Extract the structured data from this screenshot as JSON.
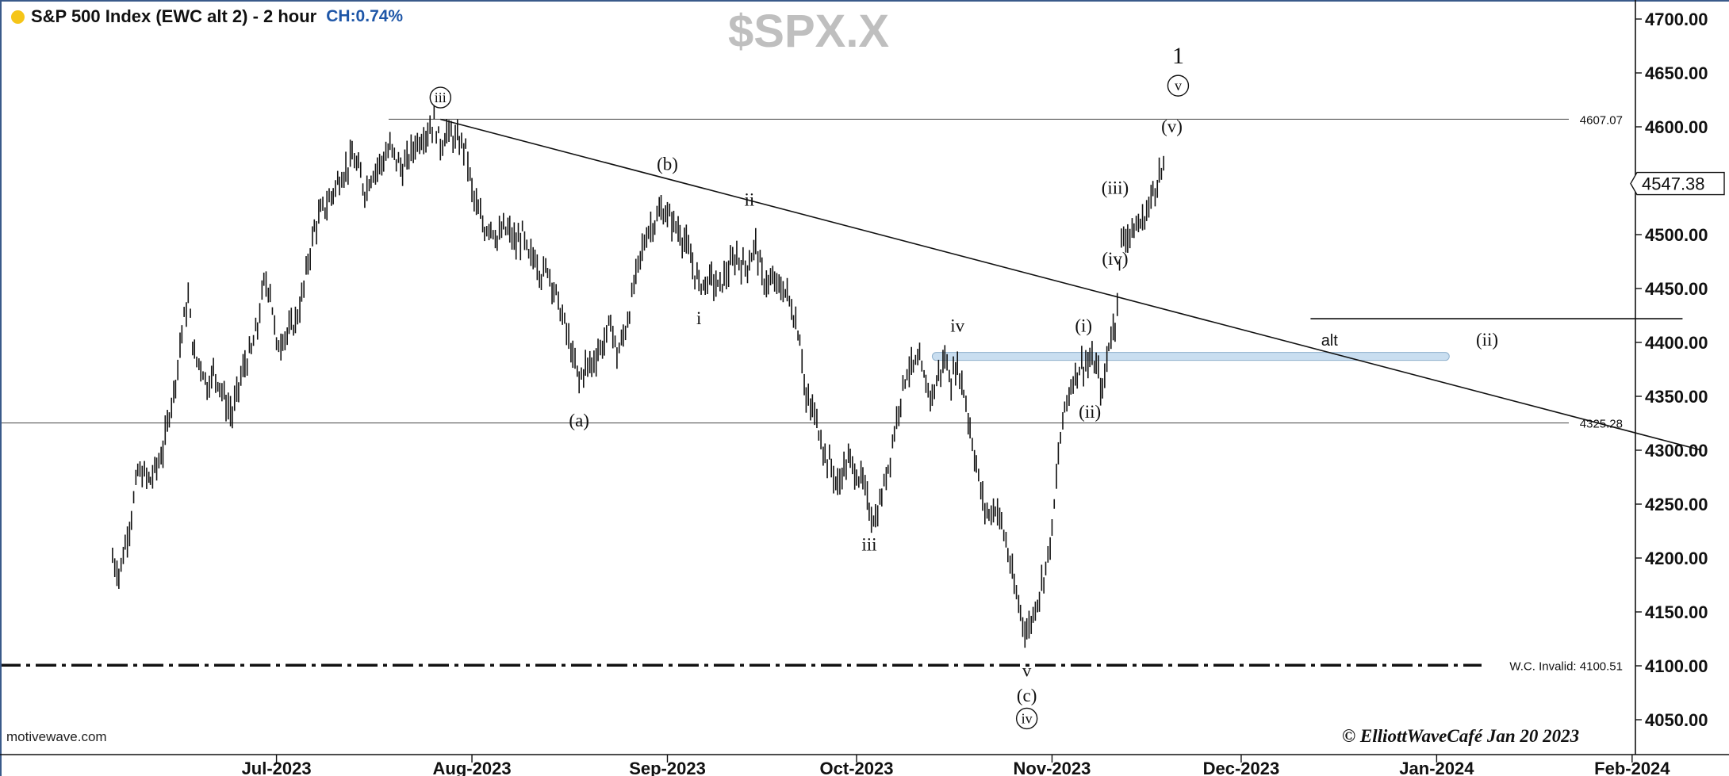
{
  "header": {
    "dot_color": "#f5c518",
    "title": "S&P 500 Index (EWC alt 2) - 2 hour",
    "change": "CH:0.74%",
    "change_color": "#1f57a8",
    "watermark": "$SPX.X"
  },
  "footer": {
    "source": "motivewave.com",
    "copyright": "© ElliottWaveCafé Jan 20 2023"
  },
  "chart_data": {
    "type": "line",
    "subtype": "ohlc-bar",
    "title": "S&P 500 Index (EWC alt 2) - 2 hour",
    "ylim": [
      4035,
      4720
    ],
    "y_ticks": [
      "4700.00",
      "4650.00",
      "4600.00",
      "4550.00",
      "4500.00",
      "4450.00",
      "4400.00",
      "4350.00",
      "4300.00",
      "4250.00",
      "4200.00",
      "4150.00",
      "4100.00",
      "4050.00"
    ],
    "x_ticks": [
      "Jul-2023",
      "Aug-2023",
      "Sep-2023",
      "Oct-2023",
      "Nov-2023",
      "Dec-2023",
      "Jan-2024",
      "Feb-2024"
    ],
    "last_price": "4547.38",
    "grid": false,
    "horizontal_lines": [
      {
        "label": "4607.07",
        "value": 4607.07,
        "style": "solid"
      },
      {
        "label": "4325.28",
        "value": 4325.28,
        "style": "solid"
      },
      {
        "label": "W.C. Invalid: 4100.51",
        "value": 4100.51,
        "style": "dash-dot"
      }
    ],
    "trendline": {
      "from": [
        "Jul-27-2023",
        4607
      ],
      "to": [
        "Feb-12-2024",
        4300
      ]
    },
    "zone": {
      "from": "Oct-13-2023",
      "to": "Jan-03-2024",
      "value": 4387,
      "color": "#c9def0"
    },
    "alt_segment": {
      "from": "Dec-12-2023",
      "to": "Feb-09-2024",
      "value": 4422
    },
    "wave_labels": [
      {
        "text": "iii",
        "date": "Jul-27-2023",
        "price": 4622,
        "circled": true
      },
      {
        "text": "(b)",
        "date": "Sep-01-2023",
        "price": 4560,
        "circled": false
      },
      {
        "text": "ii",
        "date": "Sep-14-2023",
        "price": 4527,
        "circled": false
      },
      {
        "text": "i",
        "date": "Sep-06-2023",
        "price": 4417,
        "circled": false
      },
      {
        "text": "(a)",
        "date": "Aug-18-2023",
        "price": 4322,
        "circled": false
      },
      {
        "text": "iv",
        "date": "Oct-17-2023",
        "price": 4410,
        "circled": false
      },
      {
        "text": "iii",
        "date": "Oct-03-2023",
        "price": 4207,
        "circled": false
      },
      {
        "text": "v",
        "date": "Oct-28-2023",
        "price": 4090,
        "circled": false
      },
      {
        "text": "(c)",
        "date": "Oct-28-2023",
        "price": 4067,
        "circled": false
      },
      {
        "text": "iv",
        "date": "Oct-28-2023",
        "price": 4046,
        "circled": true
      },
      {
        "text": "(i)",
        "date": "Nov-06-2023",
        "price": 4410,
        "circled": false
      },
      {
        "text": "(ii)",
        "date": "Nov-07-2023",
        "price": 4330,
        "circled": false
      },
      {
        "text": "(iii)",
        "date": "Nov-11-2023",
        "price": 4538,
        "circled": false
      },
      {
        "text": "(iv)",
        "date": "Nov-11-2023",
        "price": 4472,
        "circled": false
      },
      {
        "text": "(v)",
        "date": "Nov-20-2023",
        "price": 4595,
        "circled": false
      },
      {
        "text": "v",
        "date": "Nov-21-2023",
        "price": 4633,
        "circled": true
      },
      {
        "text": "1",
        "date": "Nov-21-2023",
        "price": 4659,
        "circled": false
      },
      {
        "text": "alt",
        "date": "Dec-15-2023",
        "price": 4397,
        "circled": false
      },
      {
        "text": "(ii)",
        "date": "Jan-09-2024",
        "price": 4397,
        "circled": false
      }
    ],
    "series": [
      {
        "name": "$SPX.X",
        "points": [
          [
            "2023-06-05",
            4200
          ],
          [
            "2023-06-06",
            4185
          ],
          [
            "2023-06-07",
            4212
          ],
          [
            "2023-06-08",
            4240
          ],
          [
            "2023-06-09",
            4280
          ],
          [
            "2023-06-11",
            4272
          ],
          [
            "2023-06-12",
            4285
          ],
          [
            "2023-06-13",
            4300
          ],
          [
            "2023-06-14",
            4335
          ],
          [
            "2023-06-15",
            4365
          ],
          [
            "2023-06-16",
            4412
          ],
          [
            "2023-06-17",
            4440
          ],
          [
            "2023-06-18",
            4385
          ],
          [
            "2023-06-19",
            4380
          ],
          [
            "2023-06-20",
            4360
          ],
          [
            "2023-06-21",
            4372
          ],
          [
            "2023-06-22",
            4362
          ],
          [
            "2023-06-23",
            4343
          ],
          [
            "2023-06-24",
            4333
          ],
          [
            "2023-06-25",
            4360
          ],
          [
            "2023-06-26",
            4380
          ],
          [
            "2023-06-27",
            4392
          ],
          [
            "2023-06-28",
            4415
          ],
          [
            "2023-06-29",
            4455
          ],
          [
            "2023-06-30",
            4450
          ],
          [
            "2023-07-01",
            4395
          ],
          [
            "2023-07-02",
            4405
          ],
          [
            "2023-07-03",
            4410
          ],
          [
            "2023-07-04",
            4420
          ],
          [
            "2023-07-05",
            4440
          ],
          [
            "2023-07-06",
            4475
          ],
          [
            "2023-07-07",
            4505
          ],
          [
            "2023-07-08",
            4520
          ],
          [
            "2023-07-09",
            4528
          ],
          [
            "2023-07-10",
            4540
          ],
          [
            "2023-07-11",
            4552
          ],
          [
            "2023-07-12",
            4560
          ],
          [
            "2023-07-13",
            4572
          ],
          [
            "2023-07-14",
            4560
          ],
          [
            "2023-07-15",
            4540
          ],
          [
            "2023-07-16",
            4555
          ],
          [
            "2023-07-17",
            4563
          ],
          [
            "2023-07-18",
            4570
          ],
          [
            "2023-07-19",
            4580
          ],
          [
            "2023-07-20",
            4570
          ],
          [
            "2023-07-21",
            4560
          ],
          [
            "2023-07-22",
            4572
          ],
          [
            "2023-07-23",
            4584
          ],
          [
            "2023-07-24",
            4590
          ],
          [
            "2023-07-25",
            4596
          ],
          [
            "2023-07-26",
            4605
          ],
          [
            "2023-07-27",
            4583
          ],
          [
            "2023-07-28",
            4595
          ],
          [
            "2023-07-29",
            4590
          ],
          [
            "2023-07-30",
            4585
          ],
          [
            "2023-07-31",
            4580
          ],
          [
            "2023-08-01",
            4540
          ],
          [
            "2023-08-02",
            4520
          ],
          [
            "2023-08-03",
            4505
          ],
          [
            "2023-08-04",
            4510
          ],
          [
            "2023-08-05",
            4495
          ],
          [
            "2023-08-06",
            4505
          ],
          [
            "2023-08-07",
            4502
          ],
          [
            "2023-08-08",
            4490
          ],
          [
            "2023-08-09",
            4500
          ],
          [
            "2023-08-10",
            4478
          ],
          [
            "2023-08-11",
            4480
          ],
          [
            "2023-08-12",
            4462
          ],
          [
            "2023-08-13",
            4470
          ],
          [
            "2023-08-14",
            4450
          ],
          [
            "2023-08-15",
            4430
          ],
          [
            "2023-08-16",
            4410
          ],
          [
            "2023-08-17",
            4385
          ],
          [
            "2023-08-18",
            4365
          ],
          [
            "2023-08-19",
            4378
          ],
          [
            "2023-08-20",
            4380
          ],
          [
            "2023-08-21",
            4392
          ],
          [
            "2023-08-22",
            4400
          ],
          [
            "2023-08-23",
            4420
          ],
          [
            "2023-08-24",
            4388
          ],
          [
            "2023-08-25",
            4405
          ],
          [
            "2023-08-26",
            4430
          ],
          [
            "2023-08-27",
            4462
          ],
          [
            "2023-08-28",
            4487
          ],
          [
            "2023-08-29",
            4505
          ],
          [
            "2023-08-30",
            4512
          ],
          [
            "2023-08-31",
            4522
          ],
          [
            "2023-09-01",
            4518
          ],
          [
            "2023-09-02",
            4510
          ],
          [
            "2023-09-03",
            4502
          ],
          [
            "2023-09-04",
            4490
          ],
          [
            "2023-09-05",
            4470
          ],
          [
            "2023-09-06",
            4455
          ],
          [
            "2023-09-07",
            4455
          ],
          [
            "2023-09-08",
            4460
          ],
          [
            "2023-09-09",
            4450
          ],
          [
            "2023-09-10",
            4460
          ],
          [
            "2023-09-11",
            4470
          ],
          [
            "2023-09-12",
            4480
          ],
          [
            "2023-09-13",
            4470
          ],
          [
            "2023-09-14",
            4475
          ],
          [
            "2023-09-15",
            4492
          ],
          [
            "2023-09-16",
            4460
          ],
          [
            "2023-09-17",
            4455
          ],
          [
            "2023-09-18",
            4455
          ],
          [
            "2023-09-19",
            4450
          ],
          [
            "2023-09-20",
            4445
          ],
          [
            "2023-09-21",
            4425
          ],
          [
            "2023-09-22",
            4405
          ],
          [
            "2023-09-23",
            4345
          ],
          [
            "2023-09-24",
            4338
          ],
          [
            "2023-09-25",
            4320
          ],
          [
            "2023-09-26",
            4295
          ],
          [
            "2023-09-27",
            4285
          ],
          [
            "2023-09-28",
            4265
          ],
          [
            "2023-09-29",
            4285
          ],
          [
            "2023-09-30",
            4290
          ],
          [
            "2023-10-01",
            4278
          ],
          [
            "2023-10-02",
            4270
          ],
          [
            "2023-10-03",
            4245
          ],
          [
            "2023-10-04",
            4235
          ],
          [
            "2023-10-05",
            4258
          ],
          [
            "2023-10-06",
            4285
          ],
          [
            "2023-10-07",
            4318
          ],
          [
            "2023-10-08",
            4350
          ],
          [
            "2023-10-09",
            4375
          ],
          [
            "2023-10-10",
            4378
          ],
          [
            "2023-10-11",
            4380
          ],
          [
            "2023-10-12",
            4360
          ],
          [
            "2023-10-13",
            4350
          ],
          [
            "2023-10-14",
            4370
          ],
          [
            "2023-10-15",
            4385
          ],
          [
            "2023-10-16",
            4365
          ],
          [
            "2023-10-17",
            4378
          ],
          [
            "2023-10-18",
            4355
          ],
          [
            "2023-10-19",
            4320
          ],
          [
            "2023-10-20",
            4285
          ],
          [
            "2023-10-21",
            4252
          ],
          [
            "2023-10-22",
            4240
          ],
          [
            "2023-10-23",
            4248
          ],
          [
            "2023-10-24",
            4232
          ],
          [
            "2023-10-25",
            4205
          ],
          [
            "2023-10-26",
            4172
          ],
          [
            "2023-10-27",
            4150
          ],
          [
            "2023-10-28",
            4130
          ],
          [
            "2023-10-29",
            4148
          ],
          [
            "2023-10-30",
            4168
          ],
          [
            "2023-10-31",
            4192
          ],
          [
            "2023-11-01",
            4225
          ],
          [
            "2023-11-02",
            4295
          ],
          [
            "2023-11-03",
            4340
          ],
          [
            "2023-11-04",
            4360
          ],
          [
            "2023-11-05",
            4375
          ],
          [
            "2023-11-06",
            4380
          ],
          [
            "2023-11-07",
            4382
          ],
          [
            "2023-11-08",
            4378
          ],
          [
            "2023-11-09",
            4352
          ],
          [
            "2023-11-10",
            4400
          ],
          [
            "2023-11-11",
            4418
          ],
          [
            "2023-11-12",
            4495
          ],
          [
            "2023-11-13",
            4500
          ],
          [
            "2023-11-14",
            4505
          ],
          [
            "2023-11-15",
            4510
          ],
          [
            "2023-11-16",
            4520
          ],
          [
            "2023-11-17",
            4540
          ],
          [
            "2023-11-18",
            4555
          ]
        ]
      }
    ]
  }
}
